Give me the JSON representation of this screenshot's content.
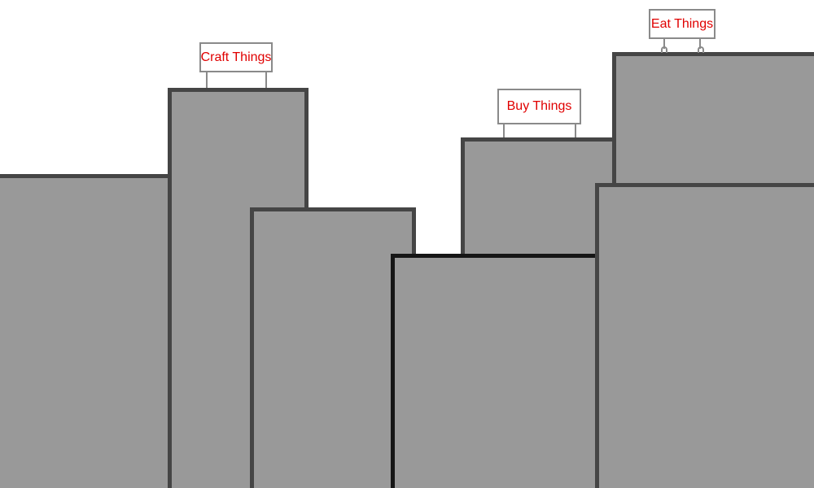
{
  "scene": {
    "signs": {
      "craft": "Craft Things",
      "buy": "Buy Things",
      "eat": "Eat Things"
    },
    "colors": {
      "background": "#ffffff",
      "building_fill": "#999999",
      "building_outline": "#454545",
      "front_building_outline": "#161616",
      "sign_text": "#e00000",
      "sign_border": "#8a8a8a"
    }
  }
}
